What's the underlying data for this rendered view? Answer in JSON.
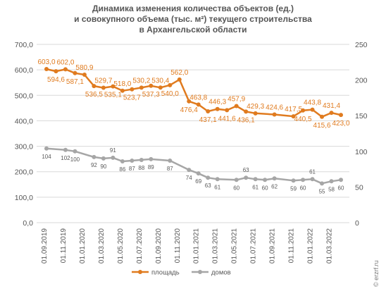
{
  "title_lines": [
    "Динамика изменения количества объектов (ед.)",
    "и совокупного объема (тыс. м²) текущего строительства",
    "в Архангельской области"
  ],
  "watermark": "© erzrf.ru",
  "colors": {
    "area": "#E07B1F",
    "homes": "#A6A6A6",
    "grid": "#D9D9D9",
    "text": "#555555"
  },
  "chart_data": {
    "type": "line",
    "title": "Динамика изменения количества объектов (ед.) и совокупного объема (тыс. м²) текущего строительства в Архангельской области",
    "x_tick_labels": [
      "01.09.2019",
      "01.11.2019",
      "01.01.2020",
      "01.03.2020",
      "01.05.2020",
      "01.07.2020",
      "01.09.2020",
      "01.11.2020",
      "01.01.2021",
      "01.03.2021",
      "01.05.2021",
      "01.07.2021",
      "01.09.2021",
      "01.11.2021",
      "01.01.2022",
      "01.03.2022"
    ],
    "y_left": {
      "min": 0,
      "max": 700,
      "step": 100,
      "tick_labels": [
        "0,0",
        "100,0",
        "200,0",
        "300,0",
        "400,0",
        "500,0",
        "600,0",
        "700,0"
      ]
    },
    "y_right": {
      "min": 0,
      "max": 250,
      "step": 50,
      "tick_labels": [
        "0",
        "50",
        "100",
        "150",
        "200",
        "250"
      ]
    },
    "grid": true,
    "legend_position": "bottom",
    "series": [
      {
        "name": "площадь",
        "axis": "left",
        "values": [
          603.0,
          594.6,
          602.0,
          587.1,
          580.9,
          536.5,
          529.7,
          535.1,
          518.0,
          523.7,
          530.2,
          537.3,
          530.4,
          540.0,
          562.0,
          476.4,
          463.8,
          437.1,
          446.3,
          441.6,
          457.9,
          436.1,
          429.3,
          null,
          424.6,
          null,
          417.5,
          440.5,
          443.8,
          415.6,
          431.4,
          423.0
        ],
        "labels": [
          "603,0",
          "594,6",
          "602,0",
          "587,1",
          "580,9",
          "536,5",
          "529,7",
          "535,1",
          "518,0",
          "523,7",
          "530,2",
          "537,3",
          "530,4",
          "540,0",
          "562,0",
          "476,4",
          "463,8",
          "437,1",
          "446,3",
          "441,6",
          "457,9",
          "436,1",
          "429,3",
          "",
          "424,6",
          "",
          "417,5",
          "440,5",
          "443,8",
          "415,6",
          "431,4",
          "423,0"
        ]
      },
      {
        "name": "домов",
        "axis": "right",
        "values": [
          104,
          null,
          102,
          100,
          null,
          92,
          90,
          91,
          86,
          87,
          88,
          89,
          null,
          87,
          null,
          74,
          69,
          63,
          61,
          null,
          60,
          63,
          61,
          60,
          62,
          null,
          59,
          60,
          61,
          55,
          58,
          60
        ],
        "labels": [
          "104",
          "",
          "102",
          "100",
          "",
          "92",
          "90",
          "91",
          "86",
          "87",
          "88",
          "89",
          "",
          "87",
          "",
          "74",
          "69",
          "63",
          "61",
          "",
          "60",
          "63",
          "61",
          "60",
          "62",
          "",
          "59",
          "60",
          "61",
          "55",
          "58",
          "60"
        ]
      }
    ]
  }
}
